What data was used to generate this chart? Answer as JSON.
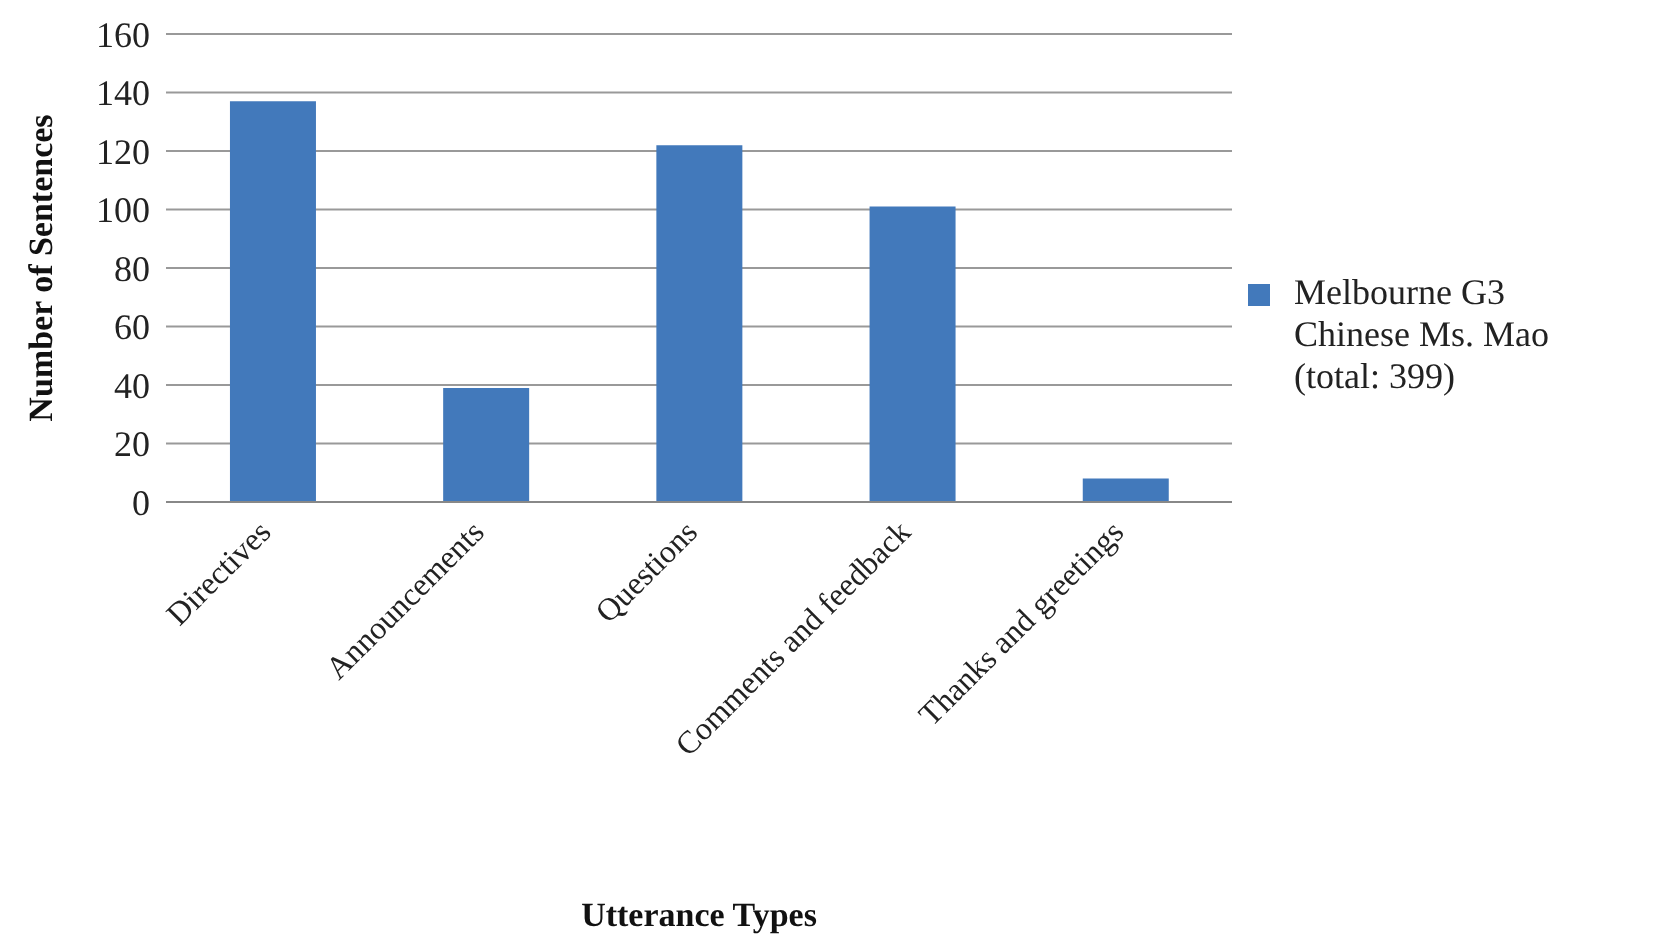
{
  "chart_data": {
    "type": "bar",
    "xlabel": "Utterance Types",
    "ylabel": "Number of Sentences",
    "categories": [
      "Directives",
      "Announcements",
      "Questions",
      "Comments and feedback",
      "Thanks and greetings"
    ],
    "series": [
      {
        "name": "Melbourne G3 Chinese Ms. Mao (total: 399)",
        "color": "#4279bb",
        "values": [
          137,
          39,
          122,
          101,
          8
        ]
      }
    ],
    "ylim": [
      0,
      160
    ],
    "yticks": [
      0,
      20,
      40,
      60,
      80,
      100,
      120,
      140,
      160
    ],
    "grid": "y",
    "legend": "right"
  }
}
